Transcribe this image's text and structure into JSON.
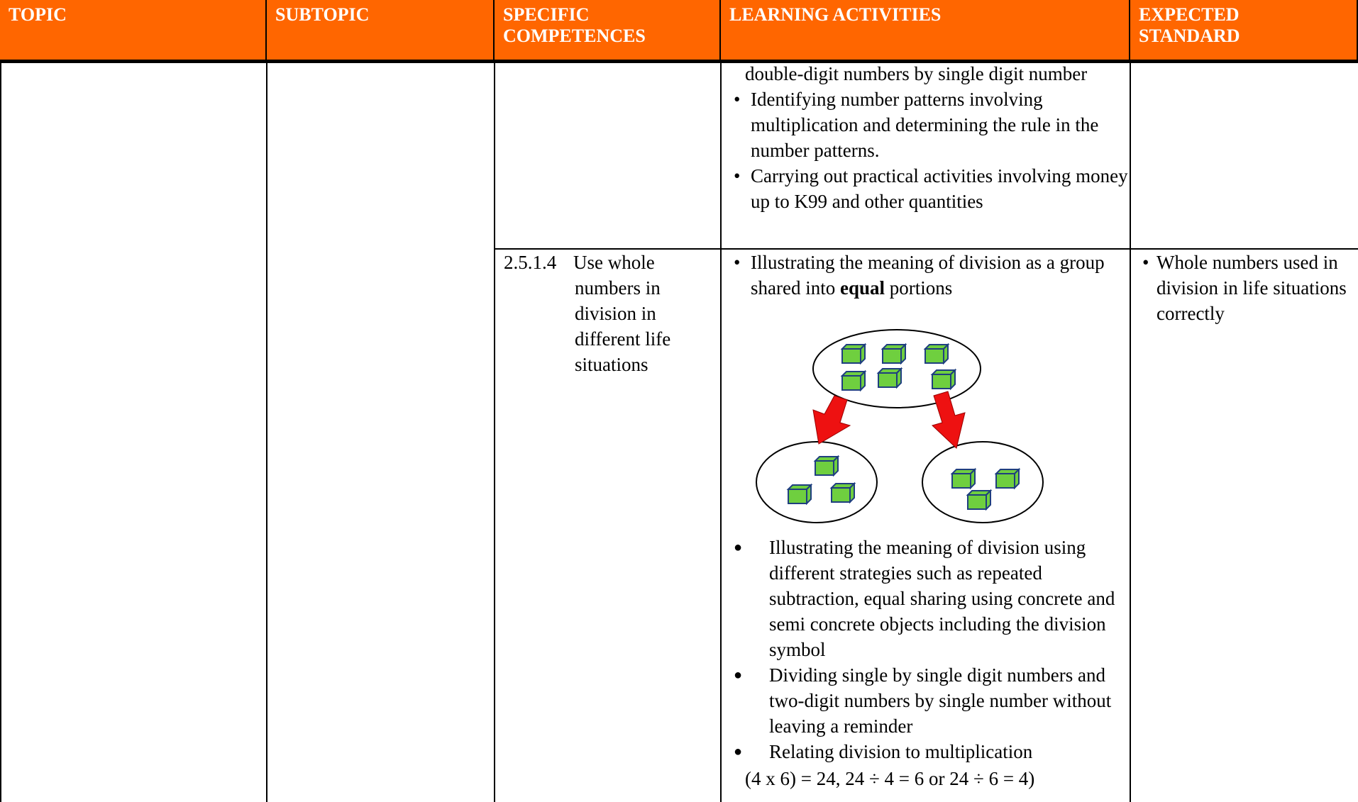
{
  "header": {
    "columns": [
      "TOPIC",
      "SUBTOPIC",
      "SPECIFIC COMPETENCES",
      "LEARNING ACTIVITIES",
      "EXPECTED STANDARD"
    ]
  },
  "table": {
    "rows": [
      {
        "activities": {
          "continuation": "double-digit numbers by single digit number",
          "items": [
            "Identifying number patterns involving multiplication and determining the rule in the number patterns.",
            "Carrying out practical activities involving money up to K99 and other quantities"
          ]
        }
      },
      {
        "competence": {
          "code": "2.5.1.4",
          "text": "Use whole numbers in division in different life situations"
        },
        "activities": {
          "first": [
            "Illustrating the meaning of division as a group shared into ",
            "equal",
            " portions"
          ],
          "items": [
            "Illustrating the meaning of division using different strategies such as repeated subtraction, equal sharing using concrete and semi concrete objects including the division symbol",
            "Dividing single by single digit numbers and two-digit numbers by single number without leaving a reminder",
            "Relating division to multiplication"
          ],
          "equation": "(4 x 6) = 24, 24 ÷ 4 = 6 or 24 ÷ 6 = 4)"
        },
        "standard": "Whole numbers used in division in life situations correctly"
      }
    ]
  }
}
